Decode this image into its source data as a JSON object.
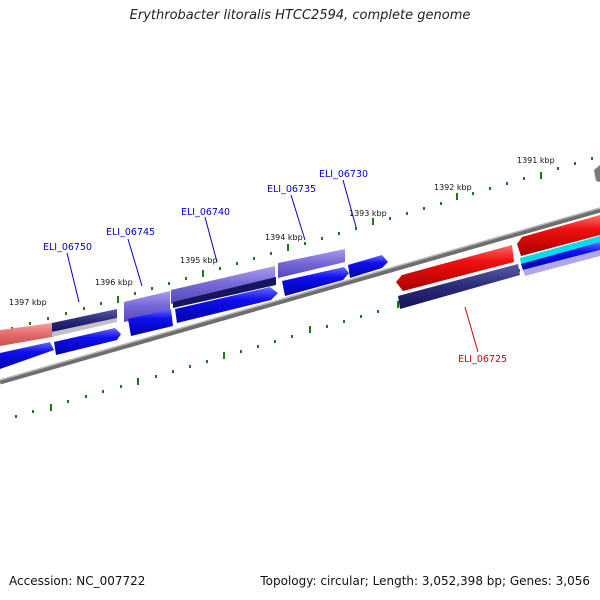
{
  "title": "Erythrobacter litoralis HTCC2594, complete genome",
  "footer": {
    "accession": "Accession: NC_007722",
    "topology": "Topology: circular; Length: 3,052,398 bp; Genes: 3,056"
  },
  "kbp_labels": [
    {
      "id": "1391",
      "text": "1391 kbp"
    },
    {
      "id": "1392",
      "text": "1392 kbp"
    },
    {
      "id": "1393",
      "text": "1393 kbp"
    },
    {
      "id": "1394",
      "text": "1394 kbp"
    },
    {
      "id": "1395",
      "text": "1395 kbp"
    },
    {
      "id": "1396",
      "text": "1396 kbp"
    },
    {
      "id": "1397",
      "text": "1397 kbp"
    }
  ],
  "gene_labels": [
    {
      "id": "ELI_06730",
      "text": "ELI_06730",
      "color": "#0000cc"
    },
    {
      "id": "ELI_06735",
      "text": "ELI_06735",
      "color": "#0000cc"
    },
    {
      "id": "ELI_06740",
      "text": "ELI_06740",
      "color": "#0000cc"
    },
    {
      "id": "ELI_06745",
      "text": "ELI_06745",
      "color": "#0000cc"
    },
    {
      "id": "ELI_06750",
      "text": "ELI_06750",
      "color": "#0000cc"
    },
    {
      "id": "ELI_06725",
      "text": "ELI_06725",
      "color": "#cc0000"
    }
  ],
  "colors": {
    "backbone": "#808080",
    "tick": "#1a7a1a",
    "forward_gene": "#0000ee",
    "reverse_gene": "#dd0000",
    "gc_dark": "#2a2a7a",
    "gc_light": "#7a6ad8",
    "cyan_track": "#00d8e8",
    "pink_gene": "#e87070"
  }
}
